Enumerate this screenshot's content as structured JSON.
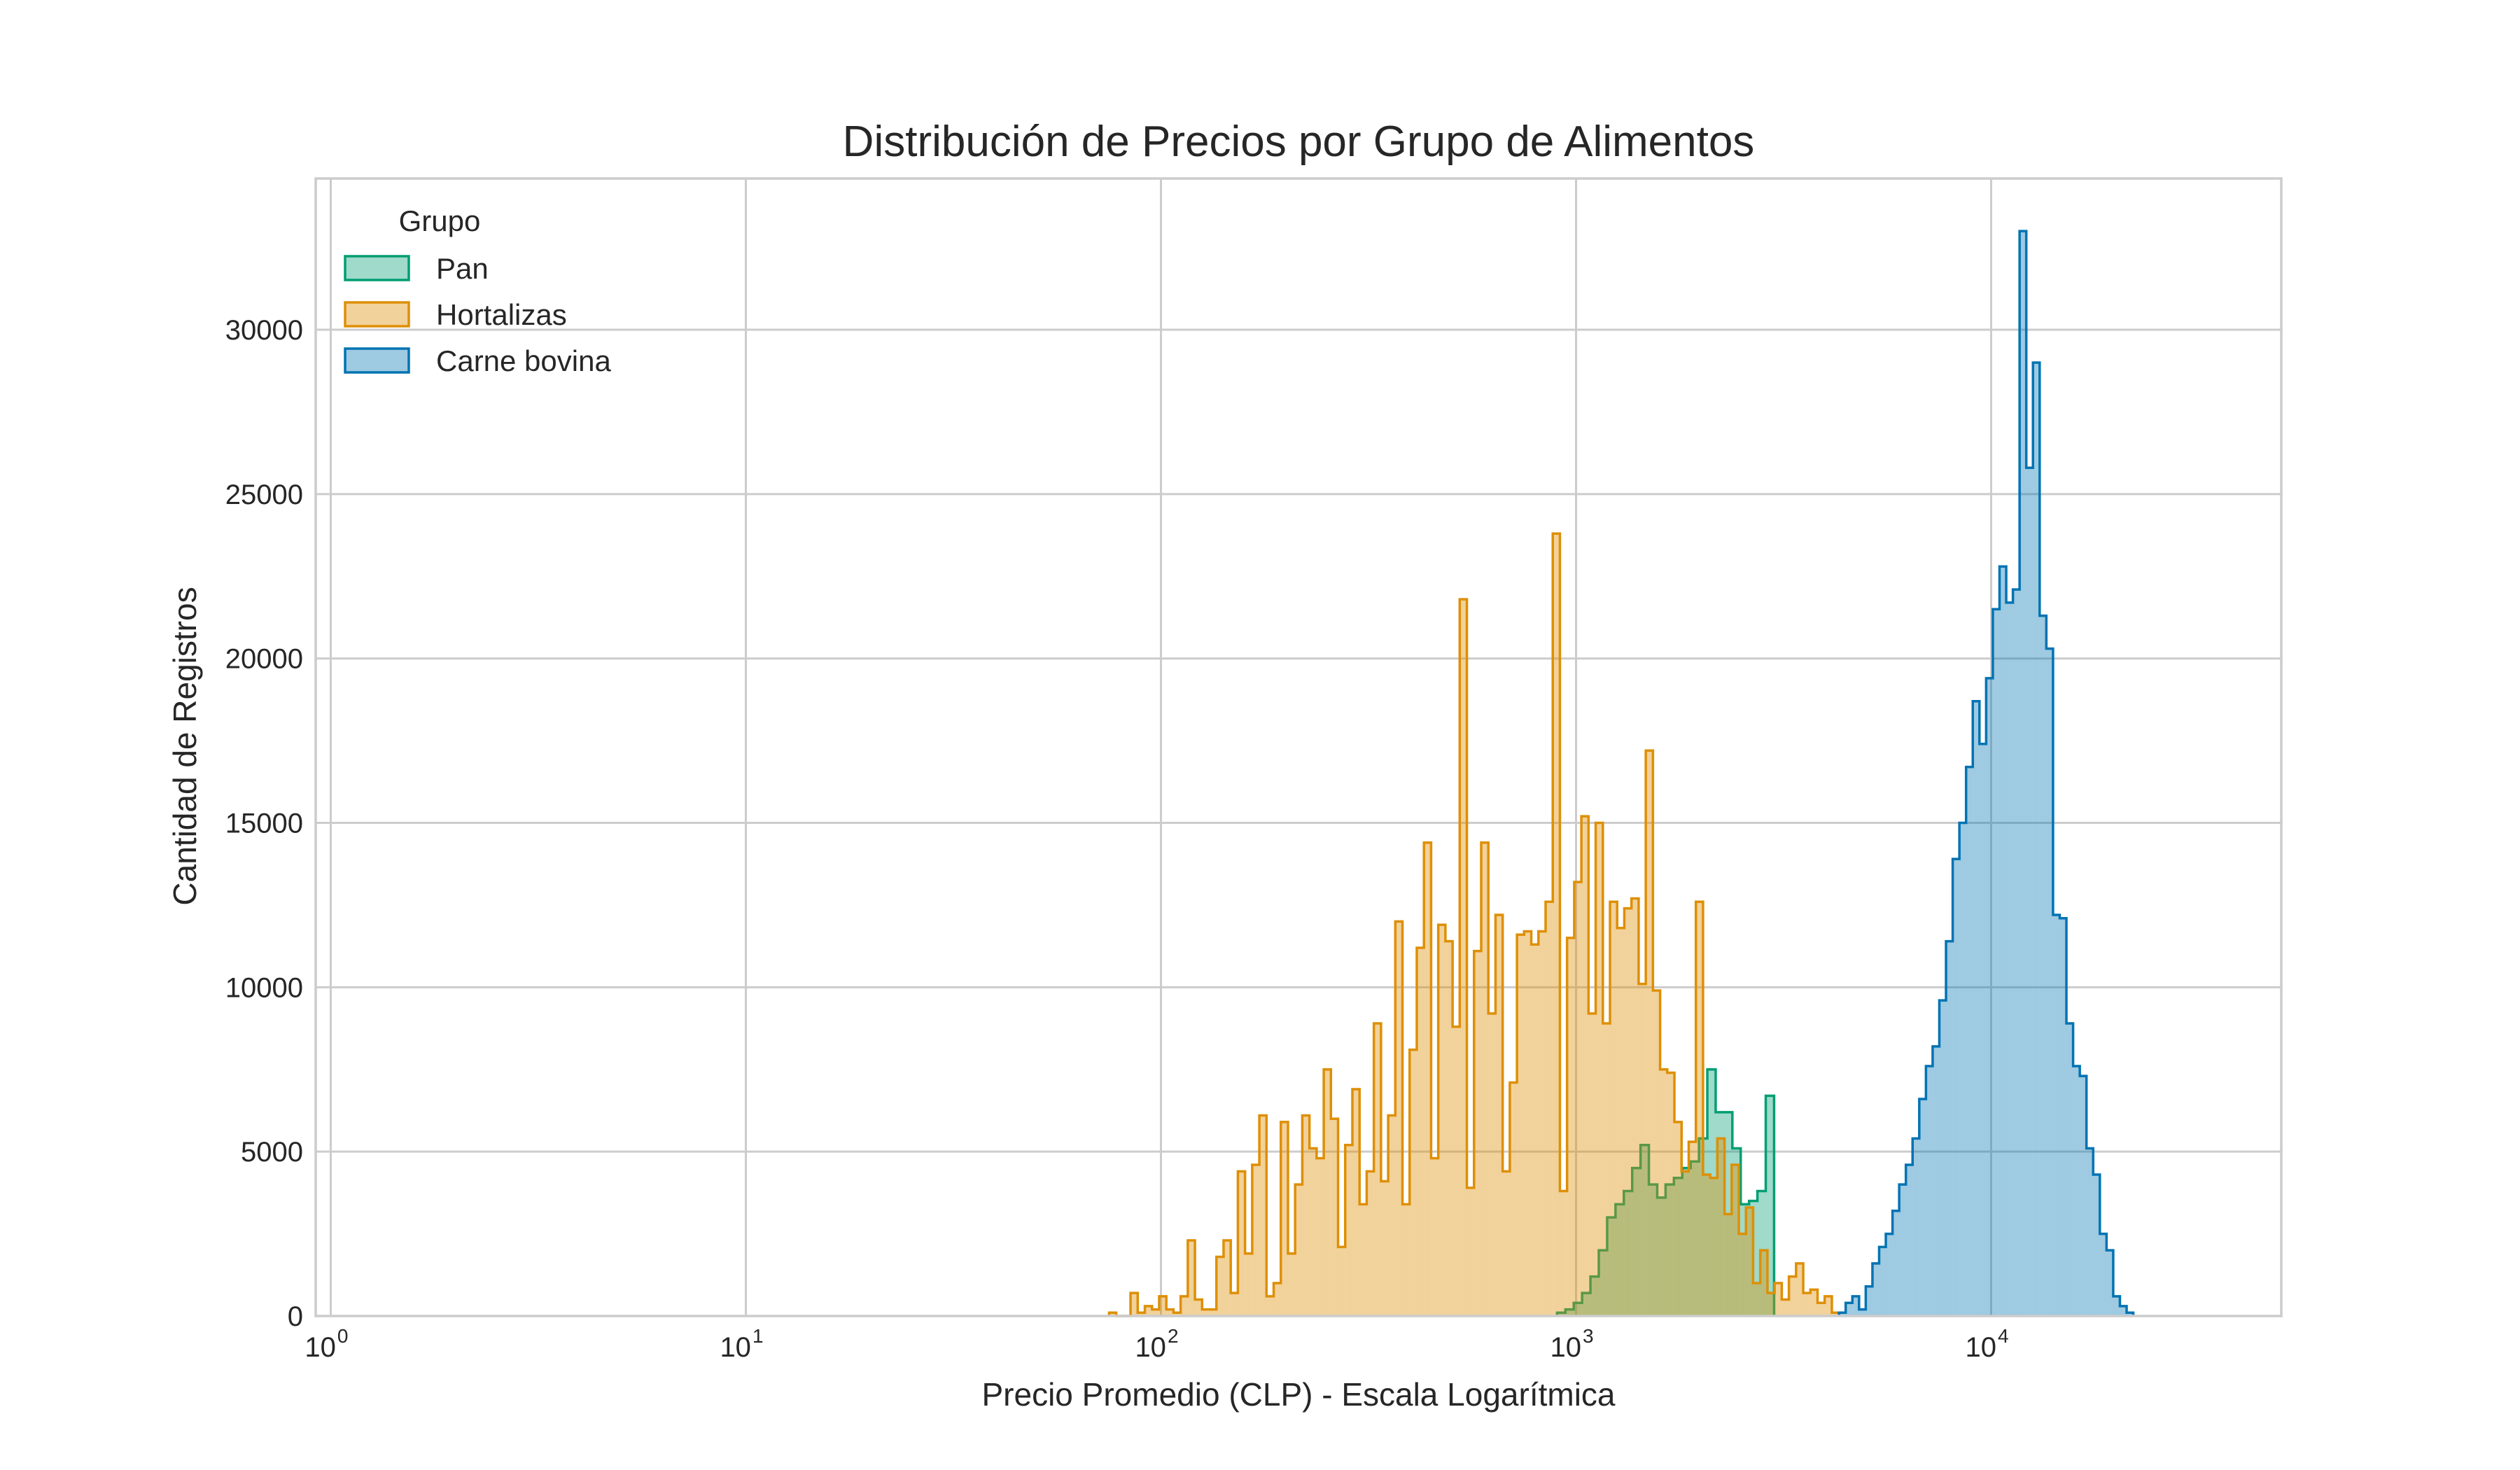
{
  "chart_data": {
    "type": "histogram",
    "title": "Distribución de Precios por Grupo de Alimentos",
    "xlabel": "Precio Promedio (CLP) - Escala Logarítmica",
    "ylabel": "Cantidad de Registros",
    "x_scale": "log",
    "xlim": [
      0.92,
      50000
    ],
    "ylim": [
      0,
      34600
    ],
    "grid": true,
    "x_ticks": [
      {
        "base": "10",
        "exp": "0",
        "value": 1
      },
      {
        "base": "10",
        "exp": "1",
        "value": 10
      },
      {
        "base": "10",
        "exp": "2",
        "value": 100
      },
      {
        "base": "10",
        "exp": "3",
        "value": 1000
      },
      {
        "base": "10",
        "exp": "4",
        "value": 10000
      }
    ],
    "y_ticks": [
      {
        "label": "0",
        "value": 0
      },
      {
        "label": "5000",
        "value": 5000
      },
      {
        "label": "10000",
        "value": 10000
      },
      {
        "label": "15000",
        "value": 15000
      },
      {
        "label": "20000",
        "value": 20000
      },
      {
        "label": "25000",
        "value": 25000
      },
      {
        "label": "30000",
        "value": 30000
      }
    ],
    "legend": {
      "title": "Grupo",
      "location": "upper-left"
    },
    "series": [
      {
        "name": "Pan",
        "color": "#029e73",
        "fill": "#029e73",
        "fill_opacity": 0.38,
        "x_range": [
          900,
          3000
        ],
        "values": [
          100,
          200,
          400,
          700,
          1200,
          2000,
          3000,
          3400,
          3800,
          4500,
          5200,
          4000,
          3600,
          4000,
          4200,
          4500,
          4700,
          5400,
          7500,
          6200,
          6200,
          5100,
          3400,
          3500,
          3800,
          6700
        ]
      },
      {
        "name": "Hortalizas",
        "color": "#de8f05",
        "fill": "#de8f05",
        "fill_opacity": 0.4,
        "x_range": [
          75,
          4300
        ],
        "values": [
          100,
          0,
          0,
          700,
          100,
          300,
          200,
          600,
          200,
          100,
          600,
          2300,
          500,
          200,
          200,
          1800,
          2300,
          700,
          4400,
          1900,
          4600,
          6100,
          600,
          1000,
          5900,
          1900,
          4000,
          6100,
          5100,
          4800,
          7500,
          6000,
          2100,
          5200,
          6900,
          3400,
          4400,
          8900,
          4100,
          6100,
          12000,
          3400,
          8100,
          11200,
          14400,
          4800,
          11900,
          11400,
          8800,
          21800,
          3900,
          11100,
          14400,
          9200,
          12200,
          4400,
          7100,
          11600,
          11700,
          11300,
          11700,
          12600,
          23800,
          3800,
          11500,
          13200,
          15200,
          9200,
          15000,
          8900,
          12600,
          11800,
          12400,
          12700,
          10100,
          17200,
          9900,
          7500,
          7400,
          5900,
          4400,
          5300,
          12600,
          4300,
          4200,
          5400,
          3100,
          4600,
          2500,
          3300,
          1000,
          2000,
          700,
          1000,
          500,
          1200,
          1600,
          700,
          800,
          400,
          600,
          100
        ]
      },
      {
        "name": "Carne bovina",
        "color": "#0173b2",
        "fill": "#0173b2",
        "fill_opacity": 0.38,
        "x_range": [
          4300,
          22000
        ],
        "values": [
          100,
          400,
          600,
          200,
          900,
          1600,
          2100,
          2500,
          3200,
          4000,
          4600,
          5400,
          6600,
          7600,
          8200,
          9600,
          11400,
          13900,
          15000,
          16700,
          18700,
          17400,
          19400,
          21500,
          22800,
          21700,
          22100,
          33000,
          25800,
          29000,
          21300,
          20300,
          12200,
          12100,
          8900,
          7600,
          7300,
          5100,
          4300,
          2500,
          2000,
          600,
          300,
          100
        ]
      }
    ]
  }
}
